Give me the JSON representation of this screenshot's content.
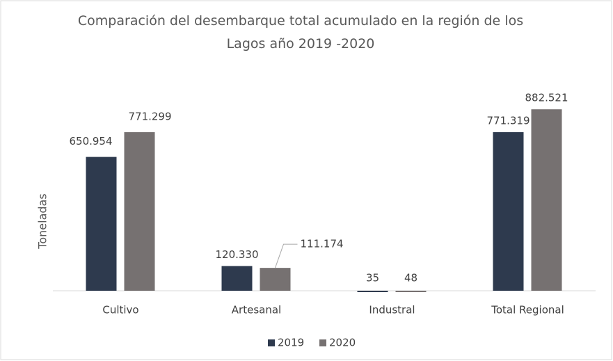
{
  "chart_data": {
    "type": "bar",
    "title": "Comparación del desembarque total acumulado en la región de los Lagos año 2019 -2020",
    "y_label": "Toneladas",
    "categories": [
      "Cultivo",
      "Artesanal",
      "Industral",
      "Total Regional"
    ],
    "series": [
      {
        "name": "2019",
        "color": "#2e3a4e",
        "values": [
          650954,
          120330,
          35,
          771319
        ],
        "value_labels": [
          "650.954",
          "120.330",
          "35",
          "771.319"
        ]
      },
      {
        "name": "2020",
        "color": "#767171",
        "values": [
          771299,
          111174,
          48,
          882521
        ],
        "value_labels": [
          "771.299",
          "111.174",
          "48",
          "882.521"
        ]
      }
    ],
    "ylim": [
      0,
      900000
    ],
    "legend": "bottom"
  }
}
